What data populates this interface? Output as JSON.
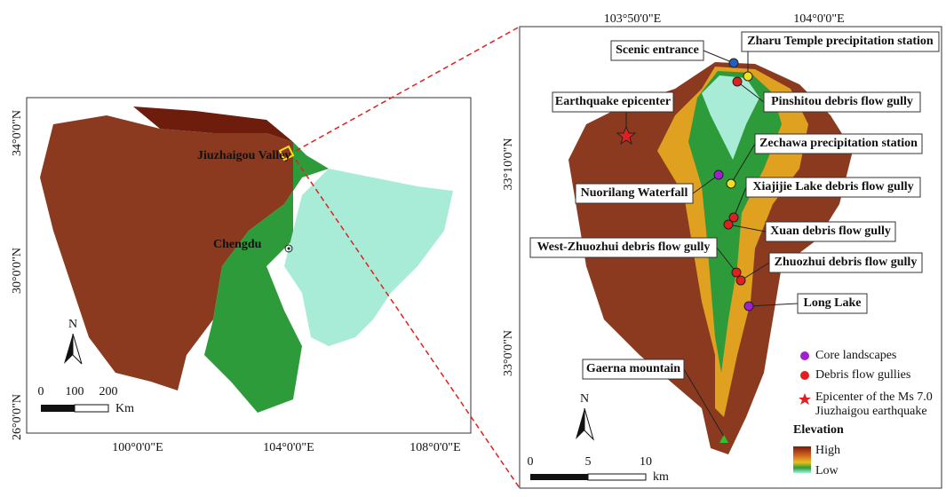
{
  "left_map": {
    "lat_labels": [
      "34°0'0\"N",
      "30°0'0\"N",
      "26°0'0\"N"
    ],
    "lon_labels": [
      "100°0'0\"E",
      "104°0'0\"E",
      "108°0'0\"E"
    ],
    "places": [
      "Jiuzhaigou Valley",
      "Chengdu"
    ],
    "north": "N",
    "scale_labels": [
      "0",
      "100",
      "200"
    ],
    "scale_unit": "Km"
  },
  "right_map": {
    "lon_labels": [
      "103°50'0\"E",
      "104°0'0\"E"
    ],
    "lat_labels": [
      "33°10'0\"N",
      "33°0'0\"N"
    ],
    "callouts": [
      "Scenic entrance",
      "Zharu Temple precipitation station",
      "Pinshitou debris flow gully",
      "Earthquake epicenter",
      "Zechawa precipitation station",
      "Nuorilang Waterfall",
      "Xiajijie Lake  debris flow gully",
      "Xuan debris flow gully",
      "West-Zhuozhui debris flow gully",
      "Zhuozhui debris flow gully",
      "Long Lake",
      "Gaerna mountain"
    ],
    "legend": [
      "Core landscapes",
      "Debris flow gullies",
      [
        "Epicenter of the Ms 7.0",
        "Jiuzhaigou earthquake"
      ]
    ],
    "elevation_title": "Elevation",
    "elevation_high": "High",
    "elevation_low": "Low",
    "north": "N",
    "scale_labels": [
      "0",
      "5",
      "10"
    ],
    "scale_unit": "km"
  }
}
